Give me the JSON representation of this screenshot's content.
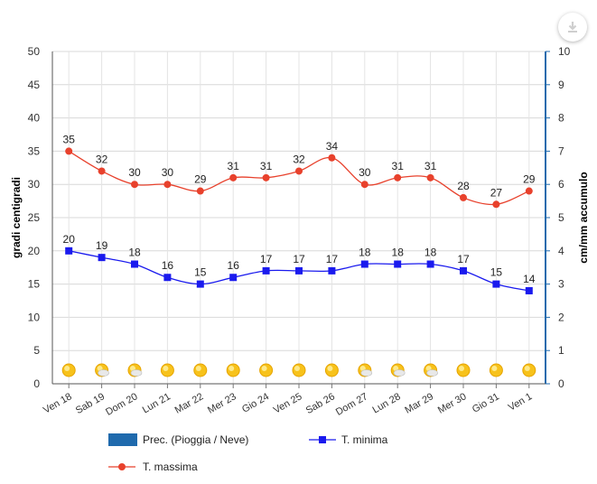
{
  "chart_data": {
    "type": "line",
    "categories": [
      "Ven 18",
      "Sab 19",
      "Dom 20",
      "Lun 21",
      "Mar 22",
      "Mer 23",
      "Gio 24",
      "Ven 25",
      "Sab 26",
      "Dom 27",
      "Lun 28",
      "Mar 29",
      "Mer 30",
      "Gio 31",
      "Ven 1"
    ],
    "series": [
      {
        "name": "T. massima",
        "axis": "left",
        "color": "#e8412c",
        "marker": "circle",
        "values": [
          35,
          32,
          30,
          30,
          29,
          31,
          31,
          32,
          34,
          30,
          31,
          31,
          28,
          27,
          29
        ]
      },
      {
        "name": "T. minima",
        "axis": "left",
        "color": "#1a1aee",
        "marker": "square",
        "values": [
          20,
          19,
          18,
          16,
          15,
          16,
          17,
          17,
          17,
          18,
          18,
          18,
          17,
          15,
          14
        ]
      },
      {
        "name": "Prec. (Pioggia / Neve)",
        "axis": "right",
        "color": "#1f6aad",
        "type": "bar",
        "values": [
          0,
          0,
          0,
          0,
          0,
          0,
          0,
          0,
          0,
          0,
          0,
          0,
          0,
          0,
          0
        ]
      }
    ],
    "weather_icons": [
      "sun",
      "sun-cloud",
      "sun-cloud",
      "sun",
      "sun",
      "sun",
      "sun",
      "sun",
      "sun",
      "sun-cloud",
      "sun-cloud",
      "sun-cloud",
      "sun",
      "sun",
      "sun"
    ],
    "ylabel": "gradi centigradi",
    "y2label": "cm/mm accumulo",
    "ylim": [
      0,
      50
    ],
    "y2lim": [
      0,
      10
    ],
    "yticks": [
      0,
      5,
      10,
      15,
      20,
      25,
      30,
      35,
      40,
      45,
      50
    ],
    "y2ticks": [
      0,
      1,
      2,
      3,
      4,
      5,
      6,
      7,
      8,
      9,
      10
    ],
    "grid": true,
    "legend_position": "bottom"
  },
  "legend": {
    "precip": "Prec. (Pioggia / Neve)",
    "min": "T. minima",
    "max": "T. massima"
  },
  "colors": {
    "y2axis": "#1f6aad"
  },
  "export_icon": "download-icon"
}
